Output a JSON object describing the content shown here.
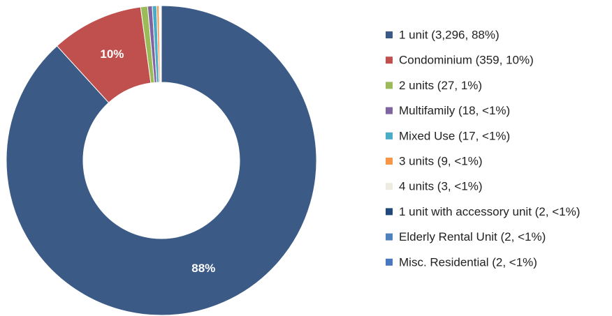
{
  "chart_data": {
    "type": "donut",
    "categories": [
      "1 unit (3,296, 88%)",
      "Condominium (359, 10%)",
      "2 units (27, 1%)",
      "Multifamily (18, <1%)",
      "Mixed Use (17, <1%)",
      "3 units (9, <1%)",
      "4 units (3, <1%)",
      "1 unit with accessory unit (2, <1%)",
      "Elderly Rental Unit (2, <1%)",
      "Misc. Residential (2, <1%)"
    ],
    "values": [
      3296,
      359,
      27,
      18,
      17,
      9,
      3,
      2,
      2,
      2
    ],
    "slice_labels": [
      "88%",
      "10%",
      null,
      null,
      null,
      null,
      null,
      null,
      null,
      null
    ],
    "colors": [
      "#3b5a86",
      "#c0504d",
      "#9bbb59",
      "#8064a2",
      "#4bacc6",
      "#f79646",
      "#eeece1",
      "#1f497d",
      "#4f81bd",
      "#4a78c0"
    ],
    "legend": "right"
  }
}
